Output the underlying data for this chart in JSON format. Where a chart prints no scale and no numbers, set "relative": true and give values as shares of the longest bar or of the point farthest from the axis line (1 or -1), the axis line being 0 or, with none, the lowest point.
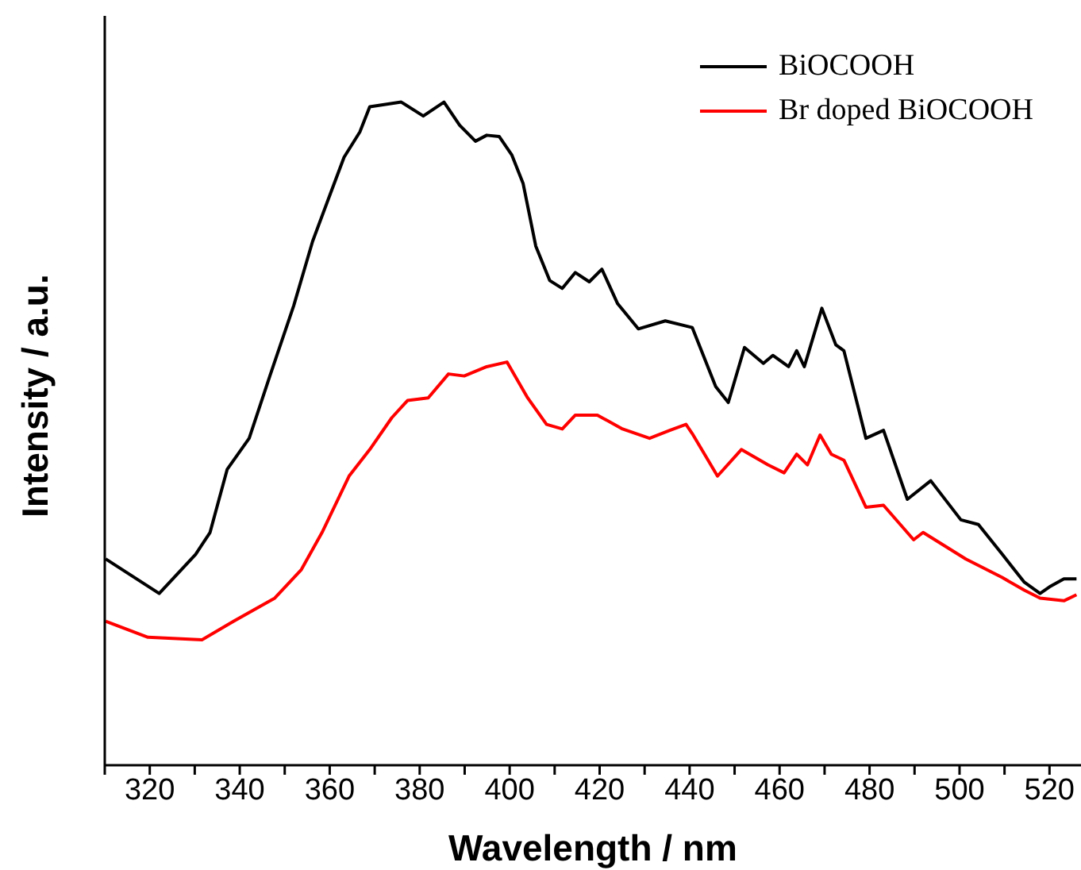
{
  "chart_data": {
    "type": "line",
    "xlabel": "Wavelength / nm",
    "ylabel": "Intensity / a.u.",
    "relative": true,
    "legend": "top right",
    "marker": "none",
    "line_style": "solid",
    "grid": false,
    "xlim": [
      310,
      527
    ],
    "xticks": [
      {
        "value": 310,
        "label": null
      },
      320,
      {
        "value": 330,
        "label": null
      },
      340,
      {
        "value": 350,
        "label": null
      },
      360,
      {
        "value": 370,
        "label": null
      },
      380,
      {
        "value": 390,
        "label": null
      },
      400,
      {
        "value": 410,
        "label": null
      },
      420,
      {
        "value": 430,
        "label": null
      },
      440,
      {
        "value": 450,
        "label": null
      },
      460,
      {
        "value": 470,
        "label": null
      },
      480,
      {
        "value": 490,
        "label": null
      },
      500,
      {
        "value": 510,
        "label": null
      },
      520
    ],
    "series": [
      {
        "name": "BiOCOOH",
        "color": "#000000",
        "x": [
          310.2,
          322.1,
          330.2,
          333.4,
          337.2,
          342.1,
          346.7,
          352.0,
          356.2,
          360.1,
          363.2,
          366.7,
          368.9,
          375.9,
          380.8,
          385.4,
          388.9,
          392.4,
          394.9,
          397.7,
          400.5,
          403.0,
          405.8,
          408.9,
          411.7,
          414.6,
          417.7,
          420.5,
          424.0,
          428.6,
          434.6,
          440.6,
          445.8,
          448.6,
          452.2,
          456.4,
          458.5,
          462.0,
          463.8,
          465.5,
          469.4,
          472.5,
          474.3,
          479.2,
          483.1,
          488.4,
          493.6,
          500.3,
          504.2,
          509.5,
          514.4,
          517.9,
          520.0,
          523.2,
          526.0
        ],
        "values": [
          0.311,
          0.259,
          0.318,
          0.351,
          0.446,
          0.493,
          0.587,
          0.693,
          0.79,
          0.861,
          0.917,
          0.955,
          0.993,
          1,
          0.979,
          1,
          0.965,
          0.941,
          0.95,
          0.948,
          0.92,
          0.877,
          0.783,
          0.731,
          0.719,
          0.743,
          0.729,
          0.748,
          0.696,
          0.658,
          0.67,
          0.66,
          0.571,
          0.547,
          0.63,
          0.606,
          0.618,
          0.601,
          0.625,
          0.601,
          0.689,
          0.634,
          0.625,
          0.493,
          0.505,
          0.401,
          0.429,
          0.37,
          0.363,
          0.318,
          0.276,
          0.259,
          0.269,
          0.281,
          0.281
        ]
      },
      {
        "name": "Br doped BiOCOOH",
        "color": "#ff0000",
        "x": [
          310.2,
          319.6,
          331.6,
          338.6,
          347.8,
          353.7,
          358.3,
          364.3,
          368.9,
          373.8,
          377.3,
          381.9,
          386.4,
          389.9,
          394.9,
          399.4,
          404.0,
          408.2,
          411.7,
          414.6,
          419.5,
          425.1,
          431.1,
          435.6,
          439.2,
          440.6,
          446.2,
          451.5,
          457.4,
          461.0,
          463.8,
          466.2,
          469.0,
          471.5,
          474.3,
          479.2,
          483.1,
          489.8,
          491.9,
          501.4,
          509.5,
          514.4,
          517.9,
          523.2,
          526.0
        ],
        "values": [
          0.217,
          0.193,
          0.189,
          0.217,
          0.252,
          0.295,
          0.351,
          0.436,
          0.476,
          0.524,
          0.55,
          0.554,
          0.59,
          0.587,
          0.601,
          0.608,
          0.554,
          0.514,
          0.507,
          0.528,
          0.528,
          0.507,
          0.493,
          0.505,
          0.514,
          0.5,
          0.436,
          0.476,
          0.453,
          0.441,
          0.469,
          0.453,
          0.498,
          0.469,
          0.46,
          0.389,
          0.392,
          0.34,
          0.351,
          0.311,
          0.283,
          0.264,
          0.252,
          0.248,
          0.257
        ]
      }
    ]
  }
}
